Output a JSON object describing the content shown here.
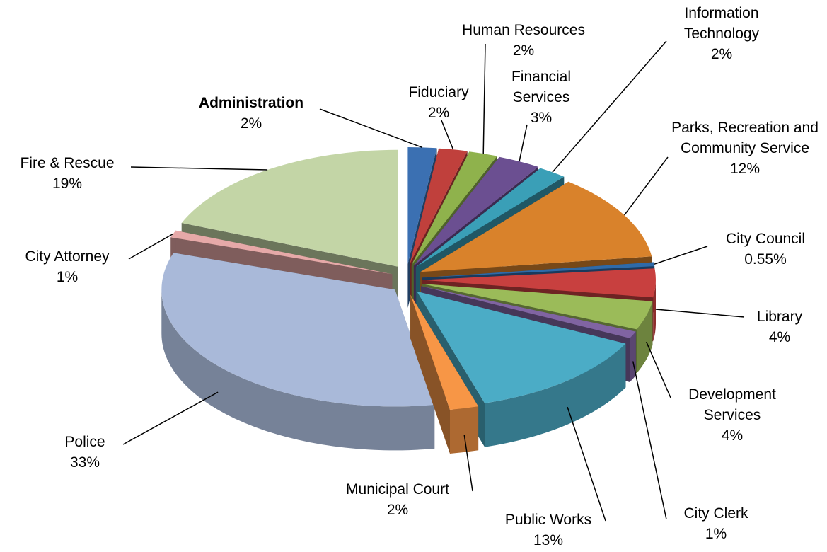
{
  "chart_data": {
    "type": "pie3d",
    "categories": [
      "Administration",
      "Fiduciary",
      "Human Resources",
      "Financial Services",
      "Information Technology",
      "Parks, Recreation and Community Service",
      "City Council",
      "Library",
      "Development Services",
      "City Clerk",
      "Public Works",
      "Municipal Court",
      "Police",
      "City Attorney",
      "Fire & Rescue"
    ],
    "values": [
      2,
      2,
      2,
      3,
      2,
      12,
      0.55,
      4,
      4,
      1,
      13,
      2,
      33,
      1,
      19
    ],
    "value_labels": [
      "2%",
      "2%",
      "2%",
      "3%",
      "2%",
      "12%",
      "0.55%",
      "4%",
      "4%",
      "1%",
      "13%",
      "2%",
      "33%",
      "1%",
      "19%"
    ],
    "colors": [
      "#3b70b2",
      "#c0403c",
      "#8fb24c",
      "#6b4f91",
      "#3a9fb7",
      "#d9822b",
      "#2f6aa8",
      "#c8403f",
      "#9bbb59",
      "#8064a2",
      "#4bacc6",
      "#f79646",
      "#a9b9d9",
      "#e6a9a8",
      "#c3d5a6"
    ]
  }
}
